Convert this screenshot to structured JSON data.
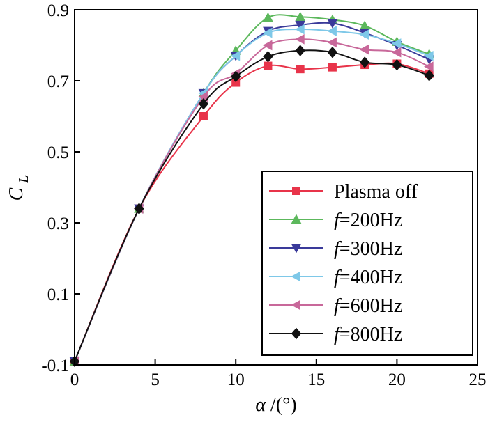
{
  "chart_data": {
    "type": "line",
    "title": "",
    "xlabel_symbol": "α",
    "xlabel_unit": "/(°)",
    "ylabel_main": "C",
    "ylabel_sub": "L",
    "xlim": [
      0,
      25
    ],
    "ylim": [
      -0.1,
      0.9
    ],
    "xticks": [
      0,
      5,
      10,
      15,
      20,
      25
    ],
    "yticks": [
      -0.1,
      0.1,
      0.3,
      0.5,
      0.7,
      0.9
    ],
    "xtick_labels": [
      "0",
      "5",
      "10",
      "15",
      "20",
      "25"
    ],
    "ytick_labels": [
      "-0.1",
      "0.1",
      "0.3",
      "0.5",
      "0.7",
      "0.9"
    ],
    "grid": false,
    "legend_position": "lower-right",
    "series": [
      {
        "name": "Plasma off",
        "label_prefix": "",
        "label_rest": "Plasma off",
        "color": "#e8344a",
        "marker": "square",
        "x": [
          0,
          4,
          8,
          10,
          12,
          14,
          16,
          18,
          20,
          22
        ],
        "y": [
          -0.09,
          0.34,
          0.6,
          0.695,
          0.742,
          0.733,
          0.738,
          0.745,
          0.748,
          0.72
        ]
      },
      {
        "name": "f=200Hz",
        "label_prefix": "f",
        "label_rest": "=200Hz",
        "color": "#5cb85c",
        "marker": "triangle-up",
        "x": [
          0,
          4,
          8,
          10,
          12,
          14,
          16,
          18,
          20,
          22
        ],
        "y": [
          -0.09,
          0.34,
          0.665,
          0.785,
          0.878,
          0.88,
          0.872,
          0.855,
          0.81,
          0.775
        ]
      },
      {
        "name": "f=300Hz",
        "label_prefix": "f",
        "label_rest": "=300Hz",
        "color": "#3a3a9a",
        "marker": "triangle-down",
        "x": [
          0,
          4,
          8,
          10,
          12,
          14,
          16,
          18,
          20,
          22
        ],
        "y": [
          -0.09,
          0.34,
          0.665,
          0.77,
          0.84,
          0.857,
          0.862,
          0.835,
          0.8,
          0.76
        ]
      },
      {
        "name": "f=400Hz",
        "label_prefix": "f",
        "label_rest": "=400Hz",
        "color": "#7ec8e8",
        "marker": "triangle-left",
        "x": [
          0,
          4,
          8,
          10,
          12,
          14,
          16,
          18,
          20,
          22
        ],
        "y": [
          -0.09,
          0.34,
          0.665,
          0.77,
          0.835,
          0.845,
          0.84,
          0.83,
          0.805,
          0.77
        ]
      },
      {
        "name": "f=600Hz",
        "label_prefix": "f",
        "label_rest": "=600Hz",
        "color": "#c8689a",
        "marker": "triangle-left",
        "x": [
          0,
          4,
          8,
          10,
          12,
          14,
          16,
          18,
          20,
          22
        ],
        "y": [
          -0.09,
          0.34,
          0.655,
          0.72,
          0.8,
          0.817,
          0.808,
          0.788,
          0.78,
          0.74
        ]
      },
      {
        "name": "f=800Hz",
        "label_prefix": "f",
        "label_rest": "=800Hz",
        "color": "#111111",
        "marker": "diamond",
        "x": [
          0,
          4,
          8,
          10,
          12,
          14,
          16,
          18,
          20,
          22
        ],
        "y": [
          -0.09,
          0.34,
          0.635,
          0.712,
          0.768,
          0.785,
          0.78,
          0.752,
          0.745,
          0.715
        ]
      }
    ]
  }
}
